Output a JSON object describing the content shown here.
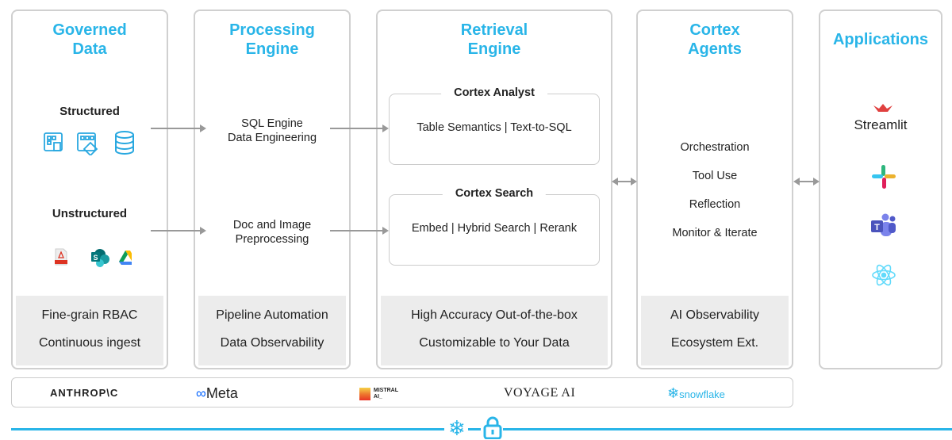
{
  "columns": {
    "governed": {
      "title_1": "Governed",
      "title_2": "Data",
      "structured": "Structured",
      "unstructured": "Unstructured",
      "structured_icons": [
        "table-icon",
        "table-transform-icon",
        "database-icon"
      ],
      "unstructured_icons": [
        "pdf-icon",
        "sharepoint-icon",
        "google-drive-icon"
      ],
      "footer": [
        "Fine-grain RBAC",
        "Continuous ingest"
      ]
    },
    "processing": {
      "title_1": "Processing",
      "title_2": "Engine",
      "sql_1": "SQL Engine",
      "sql_2": "Data Engineering",
      "doc_1": "Doc and Image",
      "doc_2": "Preprocessing",
      "footer": [
        "Pipeline Automation",
        "Data Observability"
      ]
    },
    "retrieval": {
      "title_1": "Retrieval",
      "title_2": "Engine",
      "analyst": {
        "label": "Cortex Analyst",
        "body": "Table Semantics | Text-to-SQL"
      },
      "search": {
        "label": "Cortex Search",
        "body": "Embed | Hybrid Search | Rerank"
      },
      "footer": [
        "High Accuracy Out-of-the-box",
        "Customizable to Your Data"
      ]
    },
    "agents": {
      "title_1": "Cortex",
      "title_2": "Agents",
      "items": [
        "Orchestration",
        "Tool Use",
        "Reflection",
        "Monitor & Iterate"
      ],
      "footer": [
        "AI Observability",
        "Ecosystem Ext."
      ]
    },
    "applications": {
      "title": "Applications",
      "streamlit": "Streamlit",
      "icons": [
        "streamlit-icon",
        "slack-icon",
        "teams-icon",
        "react-icon"
      ]
    }
  },
  "models": [
    "ANTHROP\\C",
    "Meta",
    "MISTRAL",
    "AI_",
    "VOYAGE AI",
    "snowflake"
  ],
  "colors": {
    "accent": "#29b5e8",
    "border": "#d0d0d0",
    "footer_bg": "#ececec"
  }
}
